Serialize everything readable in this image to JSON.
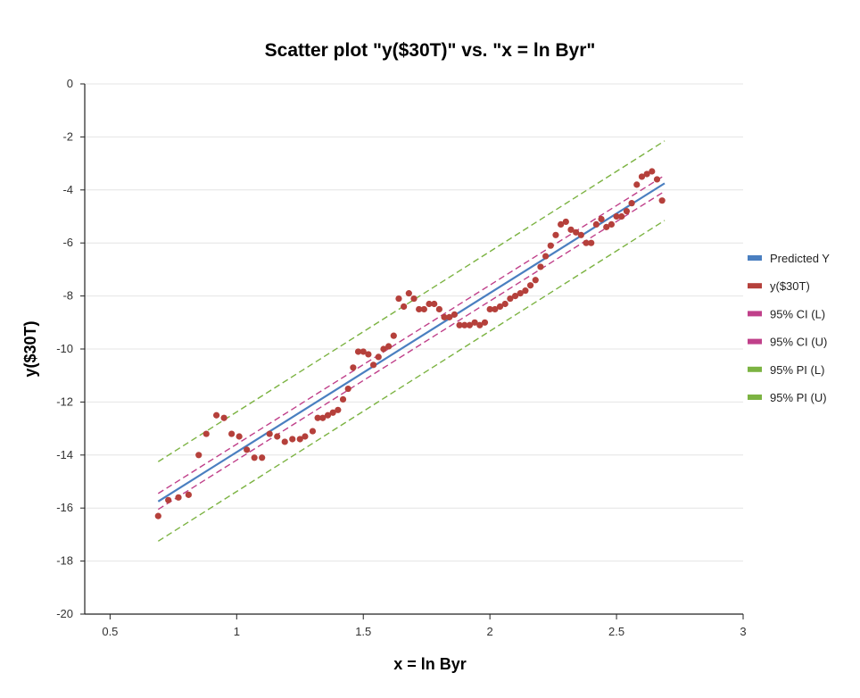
{
  "chart_data": {
    "type": "scatter",
    "title": "Scatter plot \"y($30T)\" vs. \"x = ln Byr\"",
    "xlabel": "x = ln Byr",
    "ylabel": "y($30T)",
    "xlim": [
      0.4,
      3
    ],
    "ylim": [
      -20,
      0
    ],
    "xticks": [
      0.5,
      1,
      1.5,
      2,
      2.5,
      3
    ],
    "xtick_labels": [
      "0.5",
      "1",
      "1.5",
      "2",
      "2.5",
      "3"
    ],
    "yticks": [
      0,
      -2,
      -4,
      -6,
      -8,
      -10,
      -12,
      -14,
      -16,
      -18,
      -20
    ],
    "ytick_labels": [
      "0",
      "-2",
      "-4",
      "-6",
      "-8",
      "-10",
      "-12",
      "-14",
      "-16",
      "-18",
      "-20"
    ],
    "grid": "horizontal",
    "legend_position": "right",
    "colors": {
      "predicted": "#4a7fc0",
      "points": "#b5403b",
      "ci": "#c0408a",
      "pi": "#7cb342"
    },
    "series": [
      {
        "name": "Predicted Y",
        "kind": "line",
        "style": "solid",
        "x": [
          0.69,
          2.69
        ],
        "y": [
          -15.75,
          -3.75
        ]
      },
      {
        "name": "y($30T)",
        "kind": "scatter",
        "x": [
          0.69,
          0.73,
          0.77,
          0.81,
          0.85,
          0.88,
          0.92,
          0.95,
          0.98,
          1.01,
          1.04,
          1.07,
          1.1,
          1.13,
          1.16,
          1.19,
          1.22,
          1.25,
          1.27,
          1.3,
          1.32,
          1.34,
          1.36,
          1.38,
          1.4,
          1.42,
          1.44,
          1.46,
          1.48,
          1.5,
          1.52,
          1.54,
          1.56,
          1.58,
          1.6,
          1.62,
          1.64,
          1.66,
          1.68,
          1.7,
          1.72,
          1.74,
          1.76,
          1.78,
          1.8,
          1.82,
          1.84,
          1.86,
          1.88,
          1.9,
          1.92,
          1.94,
          1.96,
          1.98,
          2.0,
          2.02,
          2.04,
          2.06,
          2.08,
          2.1,
          2.12,
          2.14,
          2.16,
          2.18,
          2.2,
          2.22,
          2.24,
          2.26,
          2.28,
          2.3,
          2.32,
          2.34,
          2.36,
          2.38,
          2.4,
          2.42,
          2.44,
          2.46,
          2.48,
          2.5,
          2.52,
          2.54,
          2.56,
          2.58,
          2.6,
          2.62,
          2.64,
          2.66,
          2.68
        ],
        "y": [
          -16.3,
          -15.7,
          -15.6,
          -15.5,
          -14.0,
          -13.2,
          -12.5,
          -12.6,
          -13.2,
          -13.3,
          -13.8,
          -14.1,
          -14.1,
          -13.2,
          -13.3,
          -13.5,
          -13.4,
          -13.4,
          -13.3,
          -13.1,
          -12.6,
          -12.6,
          -12.5,
          -12.4,
          -12.3,
          -11.9,
          -11.5,
          -10.7,
          -10.1,
          -10.1,
          -10.2,
          -10.6,
          -10.3,
          -10.0,
          -9.9,
          -9.5,
          -8.1,
          -8.4,
          -7.9,
          -8.1,
          -8.5,
          -8.5,
          -8.3,
          -8.3,
          -8.5,
          -8.8,
          -8.8,
          -8.7,
          -9.1,
          -9.1,
          -9.1,
          -9.0,
          -9.1,
          -9.0,
          -8.5,
          -8.5,
          -8.4,
          -8.3,
          -8.1,
          -8.0,
          -7.9,
          -7.8,
          -7.6,
          -7.4,
          -6.9,
          -6.5,
          -6.1,
          -5.7,
          -5.3,
          -5.2,
          -5.5,
          -5.6,
          -5.7,
          -6.0,
          -6.0,
          -5.3,
          -5.1,
          -5.4,
          -5.3,
          -5.0,
          -5.0,
          -4.8,
          -4.5,
          -3.8,
          -3.5,
          -3.4,
          -3.3,
          -3.6,
          -4.4
        ]
      },
      {
        "name": "95% CI (L)",
        "kind": "line",
        "style": "dashed",
        "x": [
          0.69,
          2.69
        ],
        "y": [
          -16.05,
          -4.05
        ]
      },
      {
        "name": "95% CI (U)",
        "kind": "line",
        "style": "dashed",
        "x": [
          0.69,
          2.69
        ],
        "y": [
          -15.45,
          -3.45
        ]
      },
      {
        "name": "95% PI (L)",
        "kind": "line",
        "style": "dashed",
        "x": [
          0.69,
          2.69
        ],
        "y": [
          -17.25,
          -5.15
        ]
      },
      {
        "name": "95% PI (U)",
        "kind": "line",
        "style": "dashed",
        "x": [
          0.69,
          2.69
        ],
        "y": [
          -14.25,
          -2.15
        ]
      }
    ]
  }
}
